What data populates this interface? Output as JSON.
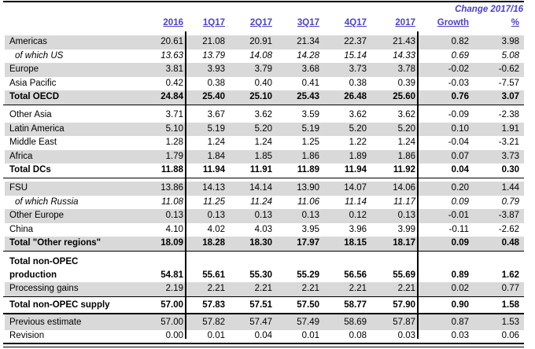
{
  "header": {
    "change_label": "Change 2017/16",
    "columns": [
      "2016",
      "1Q17",
      "2Q17",
      "3Q17",
      "4Q17",
      "2017",
      "Growth",
      "%"
    ]
  },
  "colors": {
    "accent_blue": "#4a41cf",
    "row_shade": "#d9d9d9"
  },
  "table": {
    "rows": [
      {
        "label": "Americas",
        "v": [
          "20.61",
          "21.08",
          "20.91",
          "21.34",
          "22.37",
          "21.43",
          "0.82",
          "3.98"
        ]
      },
      {
        "label": "of which US",
        "v": [
          "13.63",
          "13.79",
          "14.08",
          "14.28",
          "15.14",
          "14.33",
          "0.69",
          "5.08"
        ]
      },
      {
        "label": "Europe",
        "v": [
          "3.81",
          "3.93",
          "3.79",
          "3.68",
          "3.73",
          "3.78",
          "-0.02",
          "-0.62"
        ]
      },
      {
        "label": "Asia Pacific",
        "v": [
          "0.42",
          "0.38",
          "0.40",
          "0.41",
          "0.38",
          "0.39",
          "-0.03",
          "-7.57"
        ]
      },
      {
        "label": "Total OECD",
        "v": [
          "24.84",
          "25.40",
          "25.10",
          "25.43",
          "26.48",
          "25.60",
          "0.76",
          "3.07"
        ]
      },
      {
        "label": "Other Asia",
        "v": [
          "3.71",
          "3.67",
          "3.62",
          "3.59",
          "3.62",
          "3.62",
          "-0.09",
          "-2.38"
        ]
      },
      {
        "label": "Latin America",
        "v": [
          "5.10",
          "5.19",
          "5.20",
          "5.19",
          "5.20",
          "5.20",
          "0.10",
          "1.91"
        ]
      },
      {
        "label": "Middle East",
        "v": [
          "1.28",
          "1.24",
          "1.24",
          "1.25",
          "1.22",
          "1.24",
          "-0.04",
          "-3.21"
        ]
      },
      {
        "label": "Africa",
        "v": [
          "1.79",
          "1.84",
          "1.85",
          "1.86",
          "1.89",
          "1.86",
          "0.07",
          "3.73"
        ]
      },
      {
        "label": "Total DCs",
        "v": [
          "11.88",
          "11.94",
          "11.91",
          "11.89",
          "11.94",
          "11.92",
          "0.04",
          "0.30"
        ]
      },
      {
        "label": "FSU",
        "v": [
          "13.86",
          "14.13",
          "14.14",
          "13.90",
          "14.07",
          "14.06",
          "0.20",
          "1.44"
        ]
      },
      {
        "label": "of which Russia",
        "v": [
          "11.08",
          "11.25",
          "11.24",
          "11.06",
          "11.14",
          "11.17",
          "0.09",
          "0.79"
        ]
      },
      {
        "label": "Other Europe",
        "v": [
          "0.13",
          "0.13",
          "0.13",
          "0.13",
          "0.12",
          "0.13",
          "-0.01",
          "-3.87"
        ]
      },
      {
        "label": "China",
        "v": [
          "4.10",
          "4.02",
          "4.03",
          "3.95",
          "3.96",
          "3.99",
          "-0.11",
          "-2.62"
        ]
      },
      {
        "label": "Total \"Other regions\"",
        "v": [
          "18.09",
          "18.28",
          "18.30",
          "17.97",
          "18.15",
          "18.17",
          "0.09",
          "0.48"
        ]
      },
      {
        "label": "Total non-OPEC\nproduction",
        "v": [
          "54.81",
          "55.61",
          "55.30",
          "55.29",
          "56.56",
          "55.69",
          "0.89",
          "1.62"
        ]
      },
      {
        "label": "Processing gains",
        "v": [
          "2.19",
          "2.21",
          "2.21",
          "2.21",
          "2.21",
          "2.21",
          "0.02",
          "0.77"
        ]
      },
      {
        "label": "Total non-OPEC supply",
        "v": [
          "57.00",
          "57.83",
          "57.51",
          "57.50",
          "58.77",
          "57.90",
          "0.90",
          "1.58"
        ]
      },
      {
        "label": "Previous estimate",
        "v": [
          "57.00",
          "57.82",
          "57.47",
          "57.49",
          "58.69",
          "57.87",
          "0.87",
          "1.53"
        ]
      },
      {
        "label": "Revision",
        "v": [
          "0.00",
          "0.01",
          "0.04",
          "0.01",
          "0.08",
          "0.03",
          "0.03",
          "0.06"
        ]
      }
    ]
  }
}
